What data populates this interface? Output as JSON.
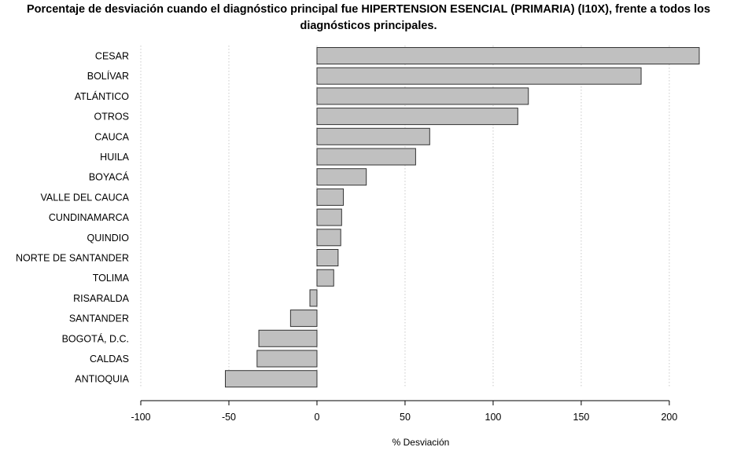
{
  "chart_data": {
    "type": "bar",
    "orientation": "horizontal",
    "title": "Porcentaje de desviación cuando el diagnóstico principal fue HIPERTENSION ESENCIAL (PRIMARIA) (I10X), frente a todos los diagnósticos principales.",
    "xlabel": "% Desviación",
    "ylabel": "",
    "categories": [
      "CESAR",
      "BOLÍVAR",
      "ATLÁNTICO",
      "OTROS",
      "CAUCA",
      "HUILA",
      "BOYACÁ",
      "VALLE DEL CAUCA",
      "CUNDINAMARCA",
      "QUINDIO",
      "NORTE DE SANTANDER",
      "TOLIMA",
      "RISARALDA",
      "SANTANDER",
      "BOGOTÁ, D.C.",
      "CALDAS",
      "ANTIOQUIA"
    ],
    "values": [
      217,
      184,
      120,
      114,
      64,
      56,
      28,
      15,
      14,
      13.5,
      12,
      9.5,
      -4,
      -15,
      -33,
      -34,
      -52
    ],
    "xlim": [
      -100,
      217
    ],
    "xticks": [
      -100,
      -50,
      0,
      50,
      100,
      150,
      200
    ],
    "grid": "vertical-dotted",
    "colors": {
      "bar_fill": "#c0c0c0",
      "bar_stroke": "#333333",
      "grid": "#c8c8c8"
    }
  }
}
